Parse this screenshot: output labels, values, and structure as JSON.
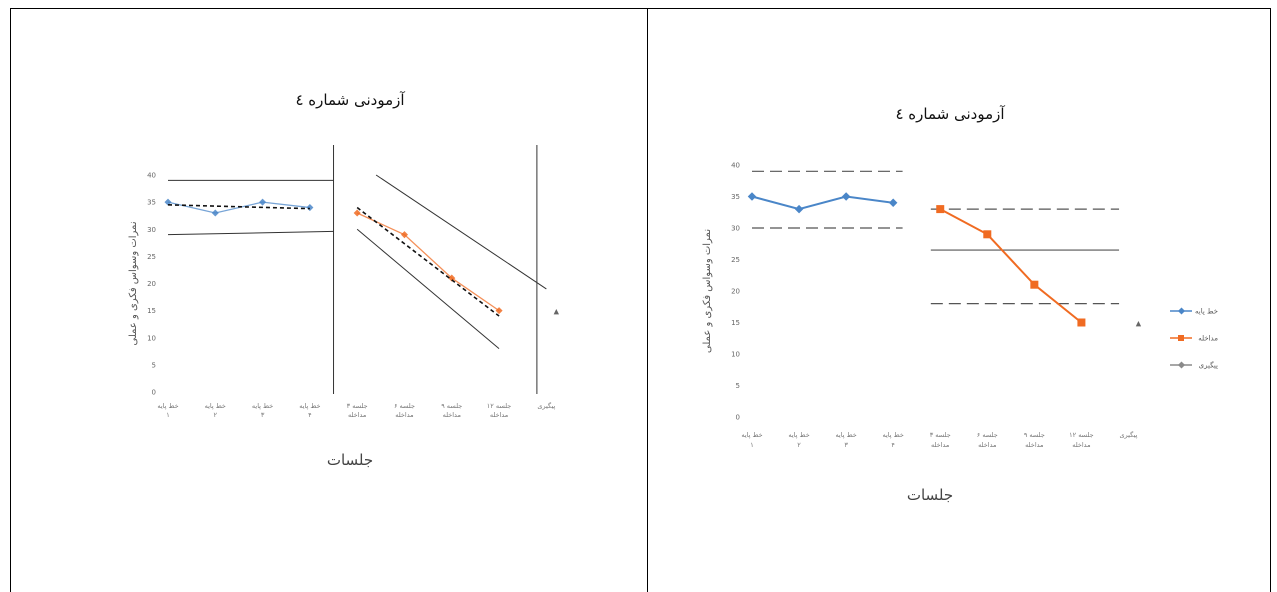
{
  "chart_data": [
    {
      "type": "line",
      "title": "آزمودنی شماره ٤",
      "xlabel": "جلسات",
      "ylabel": "نمرات وسواس فکری و عملی",
      "ylim": [
        0,
        40
      ],
      "yticks": [
        "0",
        "5",
        "10",
        "15",
        "20",
        "25",
        "30",
        "35",
        "40"
      ],
      "categories": [
        "خط پایه ۱",
        "خط پایه ۲",
        "خط پایه ۳",
        "خط پایه ۴",
        "جلسه ۳ مداخله",
        "جلسه ۶ مداخله",
        "جلسه ۹ مداخله",
        "جلسه ۱۲ مداخله",
        "پیگیری"
      ],
      "series": [
        {
          "name": "",
          "color": "#4a86c8",
          "x": [
            0,
            1,
            2,
            3
          ],
          "values": [
            35,
            33,
            35,
            34
          ]
        },
        {
          "name": "",
          "color": "#f06b22",
          "x": [
            4,
            5,
            6,
            7
          ],
          "values": [
            33,
            29,
            21,
            15
          ]
        },
        {
          "name": "",
          "color": "#8a8a8a",
          "x": [
            8
          ],
          "values": [
            15
          ]
        }
      ],
      "trend_lines": [
        {
          "x": [
            0,
            3
          ],
          "values": [
            34.5,
            33.8
          ]
        },
        {
          "x": [
            4,
            7
          ],
          "values": [
            34,
            14
          ]
        }
      ],
      "envelope_lines": [
        {
          "x": [
            0,
            3.5
          ],
          "values": [
            39,
            39
          ]
        },
        {
          "x": [
            0,
            3.5
          ],
          "values": [
            29,
            29.6
          ]
        },
        {
          "x": [
            4.4,
            8
          ],
          "values": [
            40,
            19
          ]
        },
        {
          "x": [
            4,
            7
          ],
          "values": [
            30,
            8
          ]
        }
      ],
      "phase_lines_x": [
        3.5,
        7.8
      ],
      "legend": "none",
      "grid": false
    },
    {
      "type": "line",
      "title": "آزمودنی شماره ٤",
      "xlabel": "جلسات",
      "ylabel": "نمرات وسواس فکری و عملی",
      "ylim": [
        0,
        40
      ],
      "yticks": [
        "0",
        "5",
        "10",
        "15",
        "20",
        "25",
        "30",
        "35",
        "40"
      ],
      "categories": [
        "خط پایه ۱",
        "خط پایه ۲",
        "خط پایه ۳",
        "خط پایه ۴",
        "جلسه ۳ مداخله",
        "جلسه ۶ مداخله",
        "جلسه ۹ مداخله",
        "جلسه ۱۲ مداخله",
        "پیگیری"
      ],
      "series": [
        {
          "name": "خط پایه",
          "color": "#4a86c8",
          "x": [
            0,
            1,
            2,
            3
          ],
          "values": [
            35,
            33,
            35,
            34
          ]
        },
        {
          "name": "مداخله",
          "color": "#f06b22",
          "x": [
            4,
            5,
            6,
            7
          ],
          "values": [
            33,
            29,
            21,
            15
          ]
        },
        {
          "name": "پیگیری",
          "color": "#8a8a8a",
          "x": [
            8
          ],
          "values": [
            15
          ]
        }
      ],
      "reference_lines": [
        {
          "style": "dashed",
          "x": [
            0,
            3.2
          ],
          "values": [
            39,
            39
          ]
        },
        {
          "style": "dashed",
          "x": [
            0,
            3.2
          ],
          "values": [
            30,
            30
          ]
        },
        {
          "style": "dashed",
          "x": [
            3.8,
            7.8
          ],
          "values": [
            33,
            33
          ]
        },
        {
          "style": "solid",
          "x": [
            3.8,
            7.8
          ],
          "values": [
            26.5,
            26.5
          ]
        },
        {
          "style": "dashed",
          "x": [
            3.8,
            7.8
          ],
          "values": [
            18,
            18
          ]
        }
      ],
      "legend": "right",
      "grid": false
    }
  ]
}
